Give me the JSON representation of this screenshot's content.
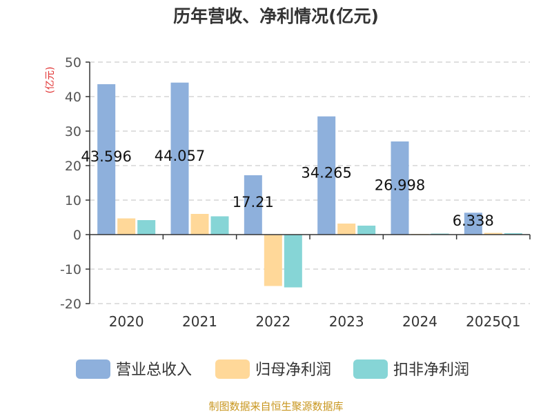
{
  "chart_data": {
    "type": "bar",
    "title": "历年营收、净利情况(亿元)",
    "unit_label": "(亿元)",
    "categories": [
      "2020",
      "2021",
      "2022",
      "2023",
      "2024",
      "2025Q1"
    ],
    "series": [
      {
        "name": "营业总收入",
        "color": "#8eb0dc",
        "values": [
          43.596,
          44.057,
          17.21,
          34.265,
          26.998,
          6.338
        ]
      },
      {
        "name": "归母净利润",
        "color": "#ffd899",
        "values": [
          4.7,
          6.0,
          -14.9,
          3.2,
          0.2,
          0.5
        ]
      },
      {
        "name": "扣非净利润",
        "color": "#86d5d6",
        "values": [
          4.2,
          5.3,
          -15.3,
          2.6,
          0.3,
          0.4
        ]
      }
    ],
    "data_labels": [
      "43.596",
      "44.057",
      "17.21",
      "34.265",
      "26.998",
      "6.338"
    ],
    "y_ticks": [
      50,
      40,
      30,
      20,
      10,
      0,
      -10,
      -20
    ],
    "ylim": [
      -20,
      50
    ],
    "grid": true,
    "legend_position": "bottom",
    "source": "制图数据来自恒生聚源数据库",
    "colors": {
      "title": "#333333",
      "unit": "#e03030",
      "source": "#c8961e",
      "axis": "#333333",
      "grid": "#cccccc"
    }
  }
}
